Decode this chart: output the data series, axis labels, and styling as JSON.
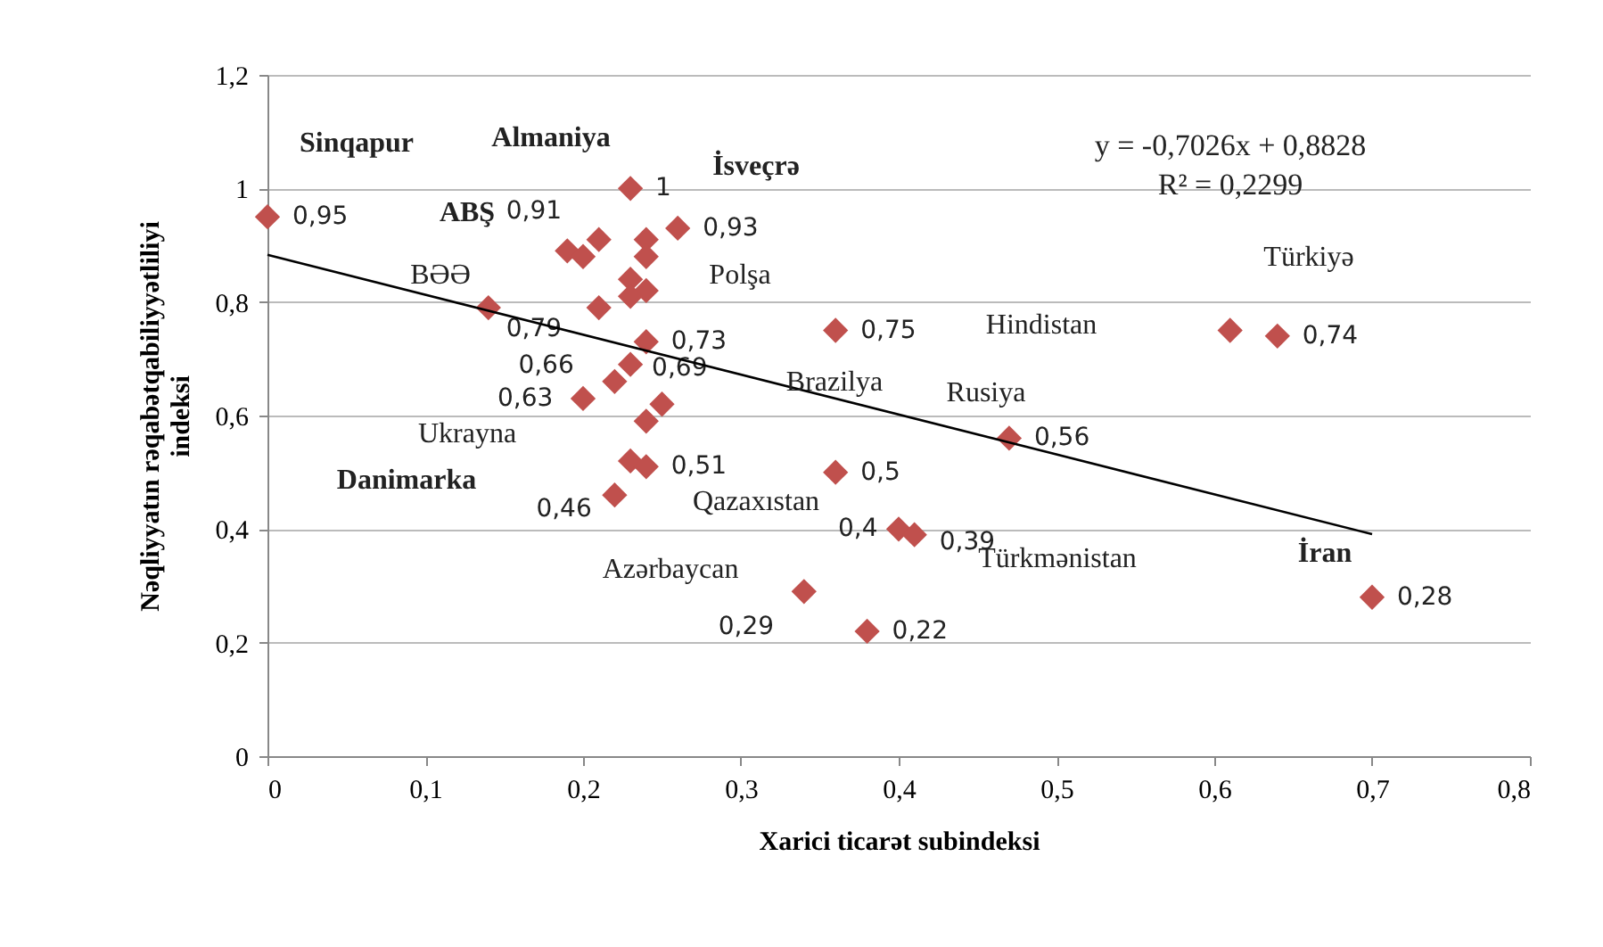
{
  "chart_data": {
    "type": "scatter",
    "xlabel": "Xarici ticarət subindeksi",
    "ylabel": "Nəqliyyatın rəqabətqabiliyyətliliyi indeksi",
    "xlim": [
      0,
      0.8
    ],
    "ylim": [
      0,
      1.2
    ],
    "xticks": [
      {
        "value": 0,
        "label": "0"
      },
      {
        "value": 0.1,
        "label": "0,1"
      },
      {
        "value": 0.2,
        "label": "0,2"
      },
      {
        "value": 0.3,
        "label": "0,3"
      },
      {
        "value": 0.4,
        "label": "0,4"
      },
      {
        "value": 0.5,
        "label": "0,5"
      },
      {
        "value": 0.6,
        "label": "0,6"
      },
      {
        "value": 0.7,
        "label": "0,7"
      },
      {
        "value": 0.8,
        "label": "0,8"
      }
    ],
    "yticks": [
      {
        "value": 0,
        "label": "0"
      },
      {
        "value": 0.2,
        "label": "0,2"
      },
      {
        "value": 0.4,
        "label": "0,4"
      },
      {
        "value": 0.6,
        "label": "0,6"
      },
      {
        "value": 0.8,
        "label": "0,8"
      },
      {
        "value": 1,
        "label": "1"
      },
      {
        "value": 1.2,
        "label": "1,2"
      }
    ],
    "grid": "y",
    "series": [
      {
        "color": "#c0504d",
        "marker": "diamond",
        "x": [
          0,
          0.23,
          0.26,
          0.19,
          0.2,
          0.21,
          0.24,
          0.24,
          0.23,
          0.24,
          0.23,
          0.21,
          0.14,
          0.24,
          0.22,
          0.2,
          0.23,
          0.25,
          0.24,
          0.23,
          0.24,
          0.22,
          0.36,
          0.36,
          0.4,
          0.41,
          0.34,
          0.38,
          0.47,
          0.61,
          0.64,
          0.7
        ],
        "values": [
          0.95,
          1,
          0.93,
          0.89,
          0.88,
          0.91,
          0.91,
          0.88,
          0.84,
          0.82,
          0.81,
          0.79,
          0.79,
          0.73,
          0.66,
          0.63,
          0.69,
          0.62,
          0.59,
          0.52,
          0.51,
          0.46,
          0.75,
          0.5,
          0.4,
          0.39,
          0.29,
          0.22,
          0.56,
          0.75,
          0.74,
          0.28
        ],
        "value_labels": [
          "0,95",
          "1",
          "0,93",
          null,
          null,
          "0,91",
          null,
          null,
          null,
          null,
          null,
          null,
          "0,79",
          "0,73",
          "0,66",
          "0,63",
          "0,69",
          null,
          null,
          null,
          "0,51",
          "0,46",
          "0,75",
          "0,5",
          "0,4",
          "0,39",
          "0,29",
          "0,22",
          "0,56",
          null,
          "0,74",
          "0,28"
        ]
      },
      {
        "type": "line",
        "color": "#000000",
        "x": [
          0,
          0.7
        ],
        "values": [
          0.883,
          0.391
        ]
      }
    ],
    "annotations": [
      "Sinqapur",
      "Almaniya",
      "İsveçrə",
      "ABŞ",
      "BƏƏ",
      "Polşa",
      "Türkiyə",
      "Hindistan",
      "Brazilya",
      "Rusiya",
      "Ukrayna",
      "Danimarka",
      "Qazaxıstan",
      "Azərbaycan",
      "Türkmənistan",
      "İran",
      "y = -0,7026x + 0,8828",
      "R² = 0,2299"
    ]
  }
}
